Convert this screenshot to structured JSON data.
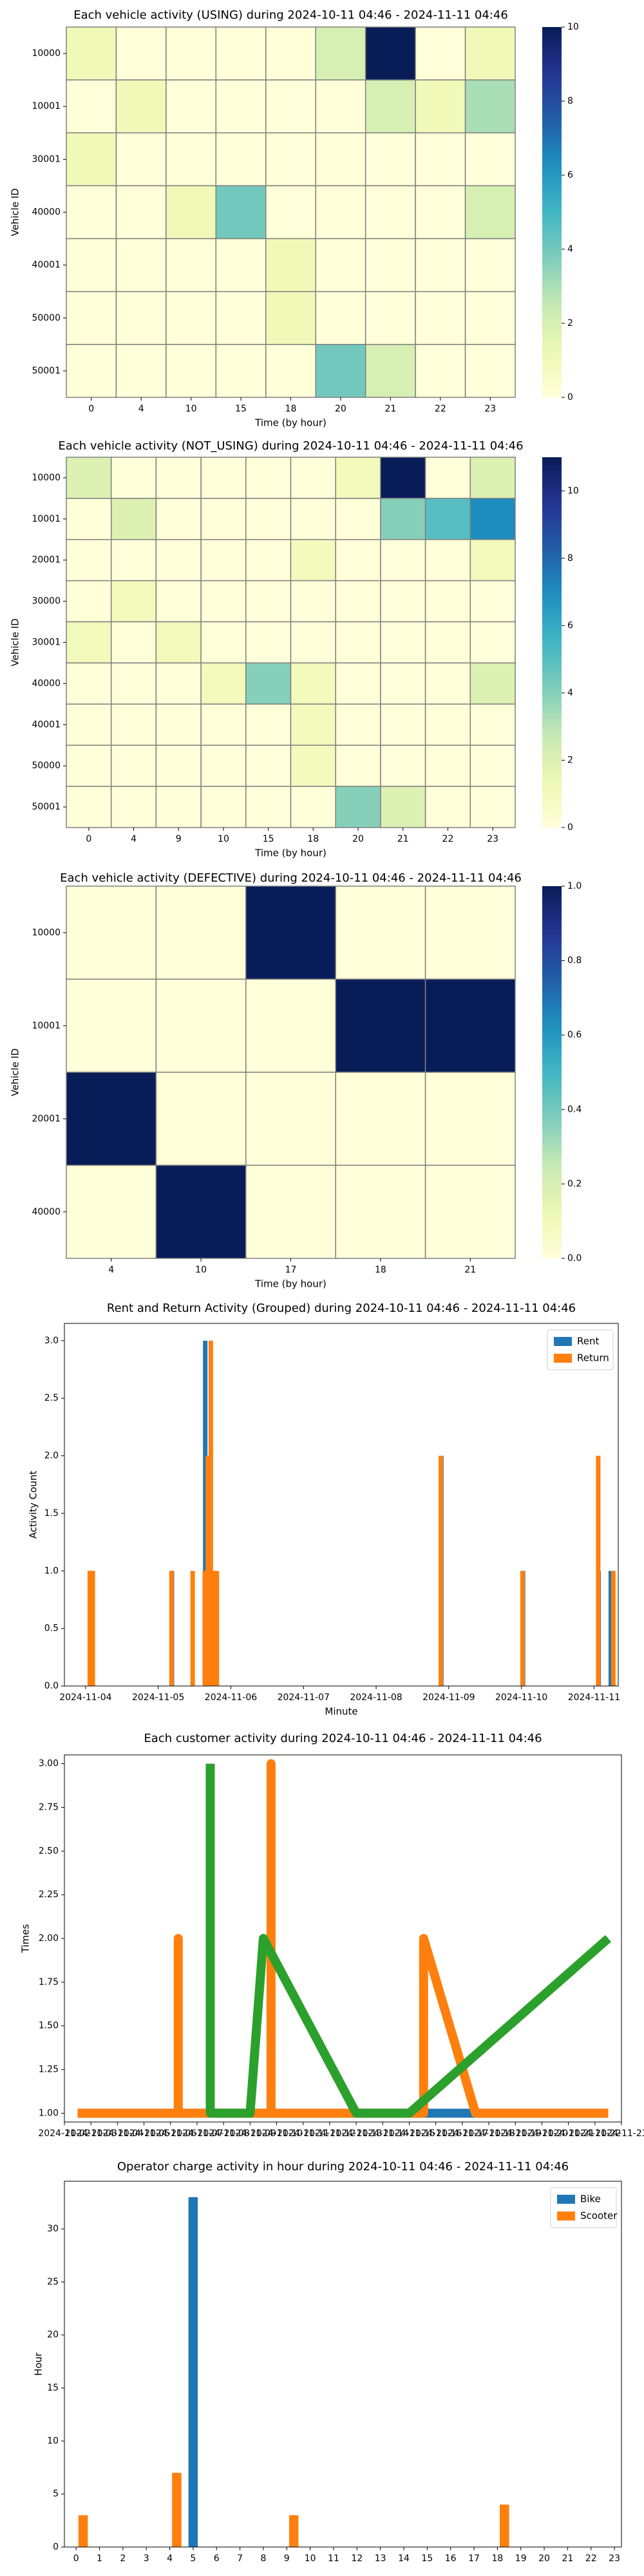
{
  "chart_data": [
    {
      "type": "heatmap",
      "title": "Each vehicle activity (USING) during 2024-10-11 04:46 - 2024-11-11 04:46",
      "xlabel": "Time (by hour)",
      "ylabel": "Vehicle ID",
      "x": [
        "0",
        "4",
        "10",
        "15",
        "18",
        "20",
        "21",
        "22",
        "23"
      ],
      "y": [
        "10000",
        "10001",
        "30001",
        "40000",
        "40001",
        "50000",
        "50001"
      ],
      "values": [
        [
          1,
          0,
          0,
          0,
          0,
          2,
          10,
          0,
          1
        ],
        [
          0,
          1,
          0,
          0,
          0,
          0,
          2,
          1,
          3
        ],
        [
          1,
          0,
          0,
          0,
          0,
          0,
          0,
          0,
          0
        ],
        [
          0,
          0,
          1,
          4,
          0,
          0,
          0,
          0,
          2
        ],
        [
          0,
          0,
          0,
          0,
          1,
          0,
          0,
          0,
          0
        ],
        [
          0,
          0,
          0,
          0,
          1,
          0,
          0,
          0,
          0
        ],
        [
          0,
          0,
          0,
          0,
          0,
          4,
          2,
          0,
          0
        ]
      ],
      "vmin": 0,
      "vmax": 10,
      "colorbar_ticks": [
        0,
        2,
        4,
        6,
        8,
        10
      ]
    },
    {
      "type": "heatmap",
      "title": "Each vehicle activity (NOT_USING) during 2024-10-11 04:46 - 2024-11-11 04:46",
      "xlabel": "Time (by hour)",
      "ylabel": "Vehicle ID",
      "x": [
        "0",
        "4",
        "9",
        "10",
        "15",
        "18",
        "20",
        "21",
        "22",
        "23"
      ],
      "y": [
        "10000",
        "10001",
        "20001",
        "30000",
        "30001",
        "40000",
        "40001",
        "50000",
        "50001"
      ],
      "values": [
        [
          2,
          0,
          0,
          0,
          0,
          0,
          1,
          11,
          0,
          2
        ],
        [
          0,
          2,
          0,
          0,
          0,
          0,
          0,
          4,
          5,
          7
        ],
        [
          0,
          0,
          0,
          0,
          0,
          1,
          0,
          0,
          0,
          1
        ],
        [
          0,
          1,
          0,
          0,
          0,
          0,
          0,
          0,
          0,
          0
        ],
        [
          1,
          0,
          1,
          0,
          0,
          0,
          0,
          0,
          0,
          0
        ],
        [
          0,
          0,
          0,
          1,
          4,
          1,
          0,
          0,
          0,
          2
        ],
        [
          0,
          0,
          0,
          0,
          0,
          1,
          0,
          0,
          0,
          0
        ],
        [
          0,
          0,
          0,
          0,
          0,
          1,
          0,
          0,
          0,
          0
        ],
        [
          0,
          0,
          0,
          0,
          0,
          0,
          4,
          2,
          0,
          0
        ]
      ],
      "vmin": 0,
      "vmax": 11,
      "colorbar_ticks": [
        0,
        2,
        4,
        6,
        8,
        10
      ]
    },
    {
      "type": "heatmap",
      "title": "Each vehicle activity (DEFECTIVE) during 2024-10-11 04:46 - 2024-11-11 04:46",
      "xlabel": "Time (by hour)",
      "ylabel": "Vehicle ID",
      "x": [
        "4",
        "10",
        "17",
        "18",
        "21"
      ],
      "y": [
        "10000",
        "10001",
        "20001",
        "40000"
      ],
      "values": [
        [
          0,
          0,
          1,
          0,
          0
        ],
        [
          0,
          0,
          0,
          1,
          1
        ],
        [
          1,
          0,
          0,
          0,
          0
        ],
        [
          0,
          1,
          0,
          0,
          0
        ]
      ],
      "vmin": 0,
      "vmax": 1,
      "colorbar_ticks": [
        "0.0",
        "0.2",
        "0.4",
        "0.6",
        "0.8",
        "1.0"
      ]
    },
    {
      "type": "bar",
      "title": "Rent and Return Activity (Grouped) during 2024-10-11 04:46 - 2024-11-11 04:46",
      "xlabel": "Minute",
      "ylabel": "Activity Count",
      "legend": "top-right",
      "xlim": [
        "2024-11-03T17:00",
        "2024-11-11T08:00"
      ],
      "ylim": [
        0,
        3.15
      ],
      "xticks": [
        "2024-11-04",
        "2024-11-05",
        "2024-11-06",
        "2024-11-07",
        "2024-11-08",
        "2024-11-09",
        "2024-11-10",
        "2024-11-11"
      ],
      "yticks": [
        "0.0",
        "0.5",
        "1.0",
        "1.5",
        "2.0",
        "2.5",
        "3.0"
      ],
      "series": [
        {
          "name": "Rent",
          "color": "#1f77b4",
          "points": [
            [
              "2024-11-04T01:00",
              1
            ],
            [
              "2024-11-05T04:00",
              1
            ],
            [
              "2024-11-05T15:00",
              3
            ],
            [
              "2024-11-08T21:00",
              2
            ],
            [
              "2024-11-10T00:00",
              1
            ],
            [
              "2024-11-11T01:00",
              1
            ],
            [
              "2024-11-11T05:00",
              1
            ]
          ]
        },
        {
          "name": "Return",
          "color": "#ff7f0e",
          "points": [
            [
              "2024-11-04T00:00",
              1
            ],
            [
              "2024-11-04T01:00",
              1
            ],
            [
              "2024-11-05T03:00",
              1
            ],
            [
              "2024-11-05T10:00",
              1
            ],
            [
              "2024-11-05T14:00",
              1
            ],
            [
              "2024-11-05T15:00",
              2
            ],
            [
              "2024-11-05T16:00",
              3
            ],
            [
              "2024-11-05T17:00",
              1
            ],
            [
              "2024-11-05T18:00",
              1
            ],
            [
              "2024-11-08T20:00",
              2
            ],
            [
              "2024-11-09T23:00",
              1
            ],
            [
              "2024-11-11T00:00",
              2
            ],
            [
              "2024-11-11T05:00",
              1
            ]
          ]
        }
      ]
    },
    {
      "type": "line",
      "title": "Each customer activity during 2024-10-11 04:46 - 2024-11-11 04:46",
      "ylabel": "Times",
      "xlim": [
        "2024-11-02",
        "2024-11-23"
      ],
      "ylim": [
        0.95,
        3.05
      ],
      "xticks": [
        "2024-11-02",
        "2024-11-03",
        "2024-11-04",
        "2024-11-05",
        "2024-11-06",
        "2024-11-07",
        "2024-11-08",
        "2024-11-09",
        "2024-11-10",
        "2024-11-11",
        "2024-11-12",
        "2024-11-13",
        "2024-11-14",
        "2024-11-15",
        "2024-11-16",
        "2024-11-17",
        "2024-11-18",
        "2024-11-19",
        "2024-11-20",
        "2024-11-21",
        "2024-11-22",
        "2024-11-23"
      ],
      "yticks": [
        "1.00",
        "1.25",
        "1.50",
        "1.75",
        "2.00",
        "2.25",
        "2.50",
        "2.75",
        "3.00"
      ],
      "series": [
        {
          "color": "#1f77b4",
          "points": [
            [
              "2024-11-02T12:00",
              1
            ],
            [
              "2024-11-22T12:00",
              1
            ]
          ]
        },
        {
          "color": "#ff7f0e",
          "points": [
            [
              "2024-11-02T12:00",
              1
            ],
            [
              "2024-11-06T07:00",
              1
            ],
            [
              "2024-11-06T07:00",
              2
            ],
            [
              "2024-11-06T07:00",
              1
            ],
            [
              "2024-11-09T19:00",
              1
            ],
            [
              "2024-11-09T19:00",
              3
            ],
            [
              "2024-11-09T19:00",
              1
            ],
            [
              "2024-11-15T13:00",
              1
            ],
            [
              "2024-11-15T13:00",
              2
            ],
            [
              "2024-11-17T12:00",
              1
            ],
            [
              "2024-11-22T12:00",
              1
            ]
          ]
        },
        {
          "color": "#2ca02c",
          "points": [
            [
              "2024-11-07T12:00",
              3
            ],
            [
              "2024-11-07T12:00",
              1
            ],
            [
              "2024-11-09T00:00",
              1
            ],
            [
              "2024-11-09T12:00",
              2
            ],
            [
              "2024-11-13T00:00",
              1
            ],
            [
              "2024-11-15T00:00",
              1
            ],
            [
              "2024-11-22T12:00",
              2
            ]
          ]
        }
      ]
    },
    {
      "type": "bar",
      "title": "Operator charge activity in hour during 2024-10-11 04:46 - 2024-11-11 04:46",
      "ylabel": "Hour",
      "legend": "top-right",
      "xlim": [
        -0.5,
        23.3
      ],
      "ylim": [
        0,
        34.5
      ],
      "xticks": [
        "0",
        "1",
        "2",
        "3",
        "4",
        "5",
        "6",
        "7",
        "8",
        "9",
        "10",
        "11",
        "12",
        "13",
        "14",
        "15",
        "16",
        "17",
        "18",
        "19",
        "20",
        "21",
        "22",
        "23"
      ],
      "yticks": [
        "0",
        "5",
        "10",
        "15",
        "20",
        "25",
        "30"
      ],
      "series": [
        {
          "name": "Bike",
          "color": "#1f77b4",
          "points": [
            [
              5,
              33
            ]
          ]
        },
        {
          "name": "Scooter",
          "color": "#ff7f0e",
          "points": [
            [
              0.3,
              3
            ],
            [
              4.3,
              7
            ],
            [
              9.3,
              3
            ],
            [
              18.3,
              4
            ]
          ]
        }
      ]
    }
  ]
}
